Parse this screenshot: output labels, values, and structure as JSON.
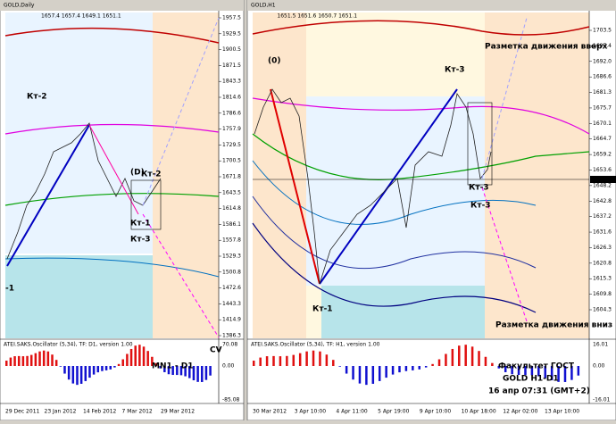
{
  "left": {
    "title": "GOLD,Daily",
    "quote": "1657.4 1657.4 1649.1 1651.1",
    "prices": [
      "1957.5",
      "1929.5",
      "1900.5",
      "1871.5",
      "1843.3",
      "1814.6",
      "1786.6",
      "1757.9",
      "1729.5",
      "1700.5",
      "1671.8",
      "1643.5",
      "1614.8",
      "1586.1",
      "1557.8",
      "1529.3",
      "1500.8",
      "1472.6",
      "1443.3",
      "1414.9",
      "1386.3"
    ],
    "osc_title": "ATEI.SAKS.Oscillator (5,34), TF: D1, version 1.00",
    "osc_scale": [
      "70.08",
      "0.00",
      "-85.08"
    ],
    "dates": [
      "29 Dec 2011",
      "23 Jan 2012",
      "14 Feb 2012",
      "7 Mar 2012",
      "29 Mar 2012"
    ],
    "labels": [
      "Кт-2",
      "(D)",
      "Кт-2",
      "Кт-1",
      "Кт-3",
      "-1",
      "MN1 - D1",
      "CV"
    ]
  },
  "right": {
    "title": "GOLD,H1",
    "quote": "1651.5 1651.6 1650.7 1651.1",
    "prices": [
      "1703.5",
      "1697.4",
      "1692.0",
      "1686.6",
      "1681.3",
      "1675.7",
      "1670.1",
      "1664.7",
      "1659.2",
      "1653.6",
      "1648.2",
      "1642.8",
      "1637.2",
      "1631.6",
      "1626.3",
      "1620.8",
      "1615.3",
      "1609.8",
      "1604.3"
    ],
    "current": "1651.1",
    "osc_title": "ATEI.SAKS.Oscillator (5,34), TF: H1, version 1.00",
    "osc_scale": [
      "16.01",
      "0.00",
      "-16.01"
    ],
    "dates": [
      "30 Mar 2012",
      "3 Apr 10:00",
      "4 Apr 11:00",
      "5 Apr 19:00",
      "9 Apr 10:00",
      "10 Apr 18:00",
      "12 Apr 02:00",
      "13 Apr 10:00"
    ],
    "labels": [
      "(0)",
      "Кт-3",
      "Кт-3",
      "Кт-1",
      "Кт-3",
      "Разметка движения вверх",
      "Разметка движения вниз",
      "Факультет ГОСТ",
      "GOLD  H1-D1",
      "16 апр 07:31  (GMT+2)"
    ]
  }
}
